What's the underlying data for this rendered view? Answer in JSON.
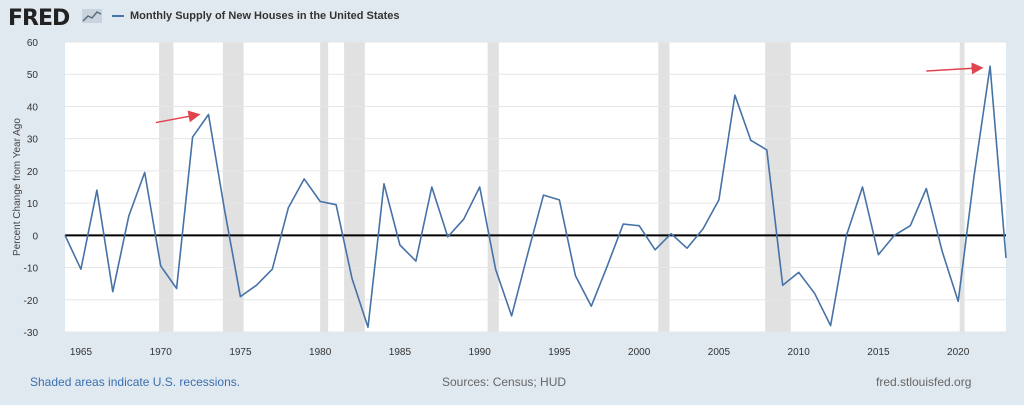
{
  "header": {
    "logo_text": "FRED",
    "logo_icon": "trend-line-icon",
    "legend_label": "Monthly Supply of New Houses in the United States"
  },
  "footer": {
    "recession_note": "Shaded areas indicate U.S. recessions.",
    "sources": "Sources: Census; HUD",
    "site": "fred.stlouisfed.org"
  },
  "colors": {
    "line": "#4572a7",
    "recession": "#e1e1e1",
    "plot_bg": "#ffffff",
    "page_bg": "#e1e9f0",
    "arrow": "#e0454f",
    "zero_line": "#000000"
  },
  "chart_data": {
    "type": "line",
    "title": "Monthly Supply of New Houses in the United States",
    "xlabel": "",
    "ylabel": "Percent Change from Year Ago",
    "xlim": [
      1964,
      2023
    ],
    "ylim": [
      -30,
      60
    ],
    "y_ticks": [
      60,
      50,
      40,
      30,
      20,
      10,
      0,
      -10,
      -20,
      -30
    ],
    "y_tick_labels": [
      "60",
      "50",
      "40",
      "30",
      "20",
      "10",
      "0",
      "-10",
      "-20",
      "-30"
    ],
    "x_ticks": [
      1965,
      1970,
      1975,
      1980,
      1985,
      1990,
      1995,
      2000,
      2005,
      2010,
      2015,
      2020
    ],
    "x_tick_labels": [
      "1965",
      "1970",
      "1975",
      "1980",
      "1985",
      "1990",
      "1995",
      "2000",
      "2005",
      "2010",
      "2015",
      "2020"
    ],
    "recessions": [
      [
        1969.9,
        1970.8
      ],
      [
        1973.9,
        1975.2
      ],
      [
        1980.0,
        1980.5
      ],
      [
        1981.5,
        1982.8
      ],
      [
        1990.5,
        1991.2
      ],
      [
        2001.2,
        2001.9
      ],
      [
        2007.9,
        2009.5
      ],
      [
        2020.1,
        2020.4
      ]
    ],
    "annotations": [
      {
        "type": "arrow",
        "x1": 1969.7,
        "y1": 35,
        "x2": 1972.4,
        "y2": 37.5
      },
      {
        "type": "arrow",
        "x1": 2018.0,
        "y1": 51,
        "x2": 2021.5,
        "y2": 52
      }
    ],
    "series": [
      {
        "name": "Monthly Supply of New Houses in the United States",
        "x": [
          1964,
          1965,
          1966,
          1967,
          1968,
          1969,
          1970,
          1971,
          1972,
          1973,
          1974,
          1975,
          1976,
          1977,
          1978,
          1979,
          1980,
          1981,
          1982,
          1983,
          1984,
          1985,
          1986,
          1987,
          1988,
          1989,
          1990,
          1991,
          1992,
          1993,
          1994,
          1995,
          1996,
          1997,
          1998,
          1999,
          2000,
          2001,
          2002,
          2003,
          2004,
          2005,
          2006,
          2007,
          2008,
          2009,
          2010,
          2011,
          2012,
          2013,
          2014,
          2015,
          2016,
          2017,
          2018,
          2019,
          2020,
          2021,
          2022,
          2023
        ],
        "values": [
          0,
          -10.5,
          14,
          -17.5,
          6,
          19.5,
          -9.5,
          -16.5,
          30.5,
          37.5,
          8,
          -19,
          -15.5,
          -10.5,
          8.5,
          17.5,
          10.5,
          9.5,
          -13.5,
          -28.5,
          16,
          -3,
          -8,
          15,
          -0.5,
          5,
          15,
          -10.5,
          -25,
          -6,
          12.5,
          11,
          -12.5,
          -22,
          -9.5,
          3.5,
          3,
          -4.5,
          0.5,
          -4,
          2,
          11,
          43.5,
          29.5,
          26.5,
          -15.5,
          -11.5,
          -18,
          -28,
          0,
          15,
          -6,
          0,
          3,
          14.5,
          -5,
          -20.5,
          18.5,
          52.5,
          -7
        ]
      }
    ]
  }
}
